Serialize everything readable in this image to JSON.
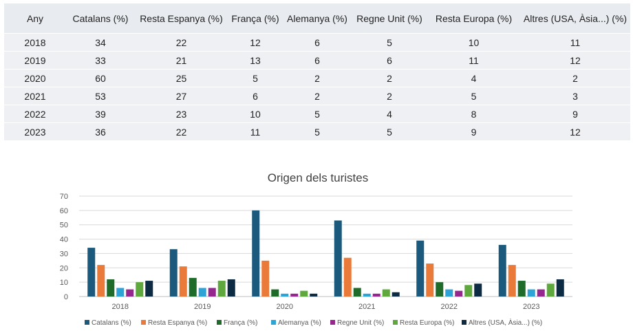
{
  "table": {
    "headers": [
      "Any",
      "Catalans (%)",
      "Resta Espanya (%)",
      "França (%)",
      "Alemanya (%)",
      "Regne Unit (%)",
      "Resta Europa (%)",
      "Altres (USA, Àsia...) (%)"
    ],
    "rows": [
      [
        "2018",
        "34",
        "22",
        "12",
        "6",
        "5",
        "10",
        "11"
      ],
      [
        "2019",
        "33",
        "21",
        "13",
        "6",
        "6",
        "11",
        "12"
      ],
      [
        "2020",
        "60",
        "25",
        "5",
        "2",
        "2",
        "4",
        "2"
      ],
      [
        "2021",
        "53",
        "27",
        "6",
        "2",
        "2",
        "5",
        "3"
      ],
      [
        "2022",
        "39",
        "23",
        "10",
        "5",
        "4",
        "8",
        "9"
      ],
      [
        "2023",
        "36",
        "22",
        "11",
        "5",
        "5",
        "9",
        "12"
      ]
    ]
  },
  "chart_data": {
    "type": "bar",
    "title": "Origen dels turistes",
    "xlabel": "",
    "ylabel": "",
    "categories": [
      "2018",
      "2019",
      "2020",
      "2021",
      "2022",
      "2023"
    ],
    "ylim": [
      0,
      70
    ],
    "yticks": [
      0,
      10,
      20,
      30,
      40,
      50,
      60,
      70
    ],
    "grid": true,
    "legend_position": "bottom",
    "series": [
      {
        "name": "Catalans (%)",
        "color": "#1c5a7d",
        "values": [
          34,
          33,
          60,
          53,
          39,
          36
        ]
      },
      {
        "name": "Resta Espanya (%)",
        "color": "#ea7a3a",
        "values": [
          22,
          21,
          25,
          27,
          23,
          22
        ]
      },
      {
        "name": "França (%)",
        "color": "#1e6b2a",
        "values": [
          12,
          13,
          5,
          6,
          10,
          11
        ]
      },
      {
        "name": "Alemanya (%)",
        "color": "#2ea3d6",
        "values": [
          6,
          6,
          2,
          2,
          5,
          5
        ]
      },
      {
        "name": "Regne Unit (%)",
        "color": "#96278f",
        "values": [
          5,
          6,
          2,
          2,
          4,
          5
        ]
      },
      {
        "name": "Resta Europa (%)",
        "color": "#5ea83d",
        "values": [
          10,
          11,
          4,
          5,
          8,
          9
        ]
      },
      {
        "name": "Altres (USA, Àsia...) (%)",
        "color": "#0d2c44",
        "values": [
          11,
          12,
          2,
          3,
          9,
          12
        ]
      }
    ]
  }
}
